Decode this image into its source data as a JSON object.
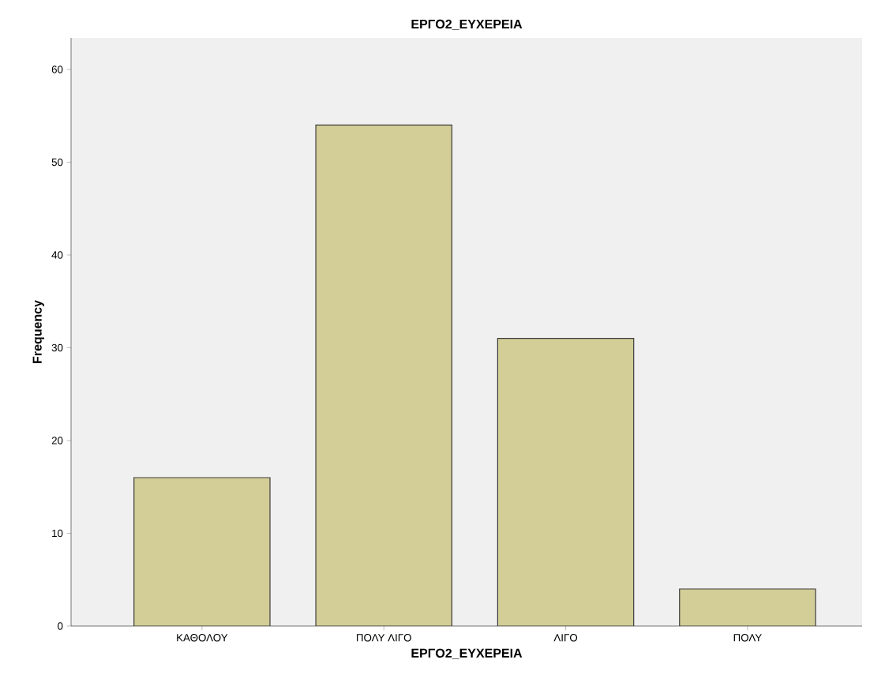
{
  "chart_data": {
    "type": "bar",
    "title": "ΕΡΓΟ2_ΕΥΧΕΡΕΙΑ",
    "xlabel": "ΕΡΓΟ2_ΕΥΧΕΡΕΙΑ",
    "ylabel": "Frequency",
    "categories": [
      "ΚΑΘΟΛΟΥ",
      "ΠΟΛΥ ΛΙΓΟ",
      "ΛΙΓΟ",
      "ΠΟΛΥ"
    ],
    "values": [
      16,
      54,
      31,
      4
    ],
    "color": "#d3ce97",
    "ylim": [
      0,
      63.4
    ],
    "yticks": [
      0,
      10,
      20,
      30,
      40,
      50,
      60
    ]
  }
}
